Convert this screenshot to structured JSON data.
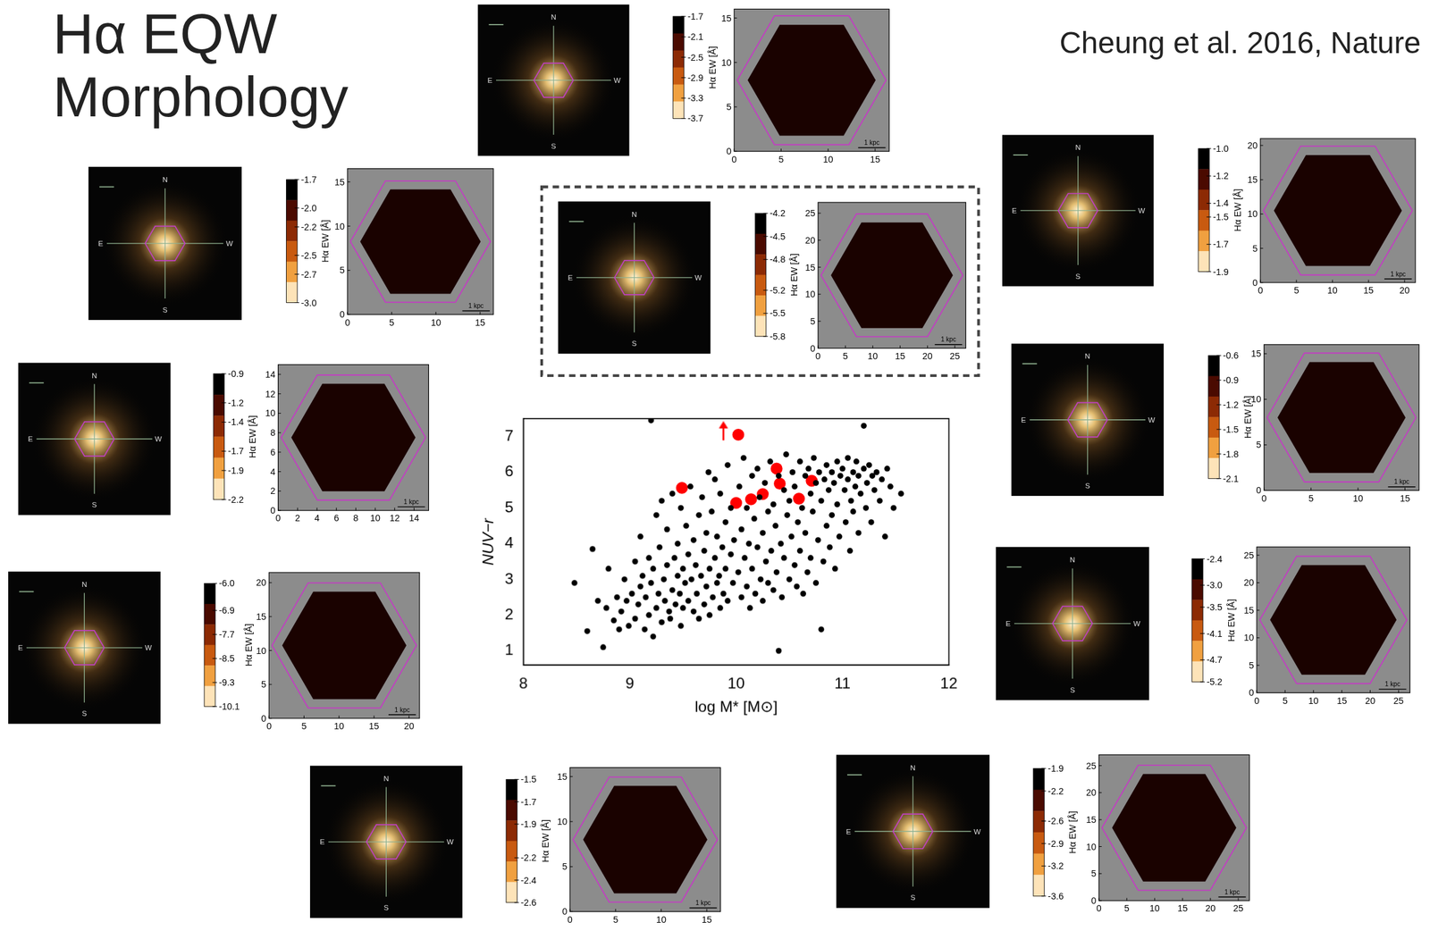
{
  "title": "Hα EQW Morphology",
  "citation": "Cheung et al. 2016, Nature",
  "chart_data": {
    "type": "scatter",
    "x_label": "log M* [M⊙]",
    "y_label": "NUV−r",
    "xlim": [
      8,
      12
    ],
    "xticks": [
      8,
      9,
      10,
      11,
      12
    ],
    "ylim": [
      0.6,
      7.5
    ],
    "yticks": [
      1,
      2,
      3,
      4,
      5,
      6,
      7
    ],
    "grid": false,
    "series": [
      {
        "color": "#000000",
        "marker": "circle",
        "values": [
          [
            8.48,
            2.9
          ],
          [
            8.6,
            1.55
          ],
          [
            8.65,
            3.85
          ],
          [
            8.7,
            2.4
          ],
          [
            8.75,
            1.1
          ],
          [
            8.78,
            2.2
          ],
          [
            8.8,
            3.3
          ],
          [
            8.85,
            1.85
          ],
          [
            8.88,
            2.5
          ],
          [
            8.9,
            1.6
          ],
          [
            8.92,
            2.1
          ],
          [
            8.95,
            3.0
          ],
          [
            8.97,
            2.4
          ],
          [
            8.99,
            1.7
          ],
          [
            9.02,
            2.6
          ],
          [
            9.05,
            3.5
          ],
          [
            9.05,
            1.9
          ],
          [
            9.08,
            2.3
          ],
          [
            9.1,
            4.2
          ],
          [
            9.1,
            2.8
          ],
          [
            9.12,
            3.1
          ],
          [
            9.14,
            1.6
          ],
          [
            9.15,
            2.5
          ],
          [
            9.18,
            3.6
          ],
          [
            9.18,
            2.0
          ],
          [
            9.2,
            7.45
          ],
          [
            9.2,
            2.9
          ],
          [
            9.22,
            1.4
          ],
          [
            9.22,
            3.3
          ],
          [
            9.25,
            2.2
          ],
          [
            9.25,
            4.8
          ],
          [
            9.27,
            2.6
          ],
          [
            9.28,
            3.9
          ],
          [
            9.3,
            1.8
          ],
          [
            9.3,
            5.2
          ],
          [
            9.32,
            3.0
          ],
          [
            9.33,
            2.4
          ],
          [
            9.35,
            4.4
          ],
          [
            9.35,
            3.4
          ],
          [
            9.37,
            2.1
          ],
          [
            9.38,
            1.9
          ],
          [
            9.4,
            2.7
          ],
          [
            9.4,
            5.4
          ],
          [
            9.42,
            3.6
          ],
          [
            9.43,
            2.3
          ],
          [
            9.45,
            4.0
          ],
          [
            9.45,
            3.1
          ],
          [
            9.47,
            2.6
          ],
          [
            9.48,
            5.0
          ],
          [
            9.48,
            1.7
          ],
          [
            9.5,
            3.3
          ],
          [
            9.5,
            2.2
          ],
          [
            9.52,
            2.9
          ],
          [
            9.53,
            4.5
          ],
          [
            9.55,
            3.7
          ],
          [
            9.55,
            2.4
          ],
          [
            9.57,
            5.6
          ],
          [
            9.58,
            3.0
          ],
          [
            9.6,
            2.1
          ],
          [
            9.6,
            4.1
          ],
          [
            9.62,
            3.4
          ],
          [
            9.63,
            2.6
          ],
          [
            9.65,
            4.8
          ],
          [
            9.65,
            1.9
          ],
          [
            9.67,
            3.1
          ],
          [
            9.68,
            5.3
          ],
          [
            9.7,
            2.3
          ],
          [
            9.7,
            3.8
          ],
          [
            9.72,
            4.3
          ],
          [
            9.72,
            2.8
          ],
          [
            9.74,
            6.0
          ],
          [
            9.75,
            3.3
          ],
          [
            9.75,
            2.0
          ],
          [
            9.77,
            4.9
          ],
          [
            9.78,
            2.5
          ],
          [
            9.8,
            3.6
          ],
          [
            9.8,
            5.8
          ],
          [
            9.82,
            2.9
          ],
          [
            9.82,
            4.2
          ],
          [
            9.84,
            3.1
          ],
          [
            9.85,
            2.2
          ],
          [
            9.85,
            5.4
          ],
          [
            9.87,
            3.9
          ],
          [
            9.88,
            2.6
          ],
          [
            9.9,
            4.6
          ],
          [
            9.9,
            3.3
          ],
          [
            9.92,
            6.2
          ],
          [
            9.92,
            2.4
          ],
          [
            9.95,
            3.7
          ],
          [
            9.95,
            5.0
          ],
          [
            9.97,
            2.9
          ],
          [
            9.98,
            4.1
          ],
          [
            10.02,
            3.2
          ],
          [
            10.03,
            5.6
          ],
          [
            10.05,
            2.5
          ],
          [
            10.05,
            4.4
          ],
          [
            10.07,
            6.4
          ],
          [
            10.08,
            3.6
          ],
          [
            10.1,
            2.8
          ],
          [
            10.1,
            5.0
          ],
          [
            10.12,
            4.0
          ],
          [
            10.13,
            2.2
          ],
          [
            10.15,
            5.9
          ],
          [
            10.15,
            3.3
          ],
          [
            10.17,
            4.7
          ],
          [
            10.18,
            2.6
          ],
          [
            10.2,
            3.9
          ],
          [
            10.2,
            6.1
          ],
          [
            10.22,
            5.3
          ],
          [
            10.23,
            3.0
          ],
          [
            10.25,
            4.3
          ],
          [
            10.25,
            2.4
          ],
          [
            10.27,
            5.7
          ],
          [
            10.28,
            3.5
          ],
          [
            10.3,
            4.9
          ],
          [
            10.3,
            2.9
          ],
          [
            10.32,
            6.3
          ],
          [
            10.33,
            3.8
          ],
          [
            10.35,
            5.1
          ],
          [
            10.35,
            2.7
          ],
          [
            10.37,
            4.5
          ],
          [
            10.38,
            3.2
          ],
          [
            10.4,
            5.9
          ],
          [
            10.4,
            1.0
          ],
          [
            10.42,
            4.0
          ],
          [
            10.43,
            2.5
          ],
          [
            10.45,
            5.5
          ],
          [
            10.45,
            3.6
          ],
          [
            10.47,
            6.5
          ],
          [
            10.48,
            4.8
          ],
          [
            10.5,
            3.0
          ],
          [
            10.5,
            5.2
          ],
          [
            10.52,
            4.2
          ],
          [
            10.53,
            6.0
          ],
          [
            10.55,
            3.4
          ],
          [
            10.55,
            5.6
          ],
          [
            10.57,
            2.8
          ],
          [
            10.58,
            4.6
          ],
          [
            10.6,
            6.3
          ],
          [
            10.6,
            3.8
          ],
          [
            10.62,
            5.0
          ],
          [
            10.63,
            2.6
          ],
          [
            10.65,
            5.9
          ],
          [
            10.65,
            4.3
          ],
          [
            10.67,
            3.2
          ],
          [
            10.68,
            6.1
          ],
          [
            10.7,
            5.4
          ],
          [
            10.7,
            3.6
          ],
          [
            10.72,
            4.9
          ],
          [
            10.73,
            6.4
          ],
          [
            10.75,
            5.7
          ],
          [
            10.75,
            2.9
          ],
          [
            10.77,
            4.1
          ],
          [
            10.78,
            6.0
          ],
          [
            10.8,
            1.6
          ],
          [
            10.8,
            5.2
          ],
          [
            10.82,
            3.5
          ],
          [
            10.83,
            5.8
          ],
          [
            10.85,
            4.5
          ],
          [
            10.85,
            6.2
          ],
          [
            10.87,
            5.5
          ],
          [
            10.88,
            3.9
          ],
          [
            10.9,
            6.0
          ],
          [
            10.9,
            4.8
          ],
          [
            10.92,
            5.7
          ],
          [
            10.93,
            3.3
          ],
          [
            10.95,
            6.3
          ],
          [
            10.95,
            5.1
          ],
          [
            10.97,
            4.2
          ],
          [
            10.98,
            5.9
          ],
          [
            11.0,
            6.1
          ],
          [
            11.02,
            5.5
          ],
          [
            11.03,
            4.6
          ],
          [
            11.05,
            6.4
          ],
          [
            11.05,
            5.8
          ],
          [
            11.07,
            3.8
          ],
          [
            11.08,
            5.2
          ],
          [
            11.1,
            6.0
          ],
          [
            11.1,
            4.9
          ],
          [
            11.12,
            5.6
          ],
          [
            11.13,
            6.3
          ],
          [
            11.15,
            5.9
          ],
          [
            11.15,
            4.3
          ],
          [
            11.17,
            5.4
          ],
          [
            11.2,
            7.3
          ],
          [
            11.2,
            6.1
          ],
          [
            11.22,
            5.0
          ],
          [
            11.23,
            5.7
          ],
          [
            11.25,
            6.2
          ],
          [
            11.27,
            4.6
          ],
          [
            11.28,
            5.9
          ],
          [
            11.3,
            5.5
          ],
          [
            11.32,
            6.0
          ],
          [
            11.35,
            5.2
          ],
          [
            11.37,
            5.8
          ],
          [
            11.4,
            4.2
          ],
          [
            11.42,
            6.1
          ],
          [
            11.45,
            5.6
          ],
          [
            11.48,
            5.0
          ],
          [
            11.55,
            5.4
          ]
        ]
      },
      {
        "color": "#ff0000",
        "marker": "circle",
        "values": [
          [
            9.49,
            5.56
          ],
          [
            10.02,
            7.05
          ],
          [
            10.0,
            5.14
          ],
          [
            10.14,
            5.24
          ],
          [
            10.25,
            5.39
          ],
          [
            10.38,
            6.1
          ],
          [
            10.41,
            5.68
          ],
          [
            10.71,
            5.76
          ],
          [
            10.59,
            5.26
          ]
        ]
      },
      {
        "color": "#ff0000",
        "marker": "arrow",
        "values": [
          [
            9.88,
            7.15
          ]
        ]
      }
    ]
  },
  "panels": {
    "colorbar_label": "Hα EW [Å]",
    "scale_bar": "1 kpc",
    "compass": [
      "N",
      "E",
      "S",
      "W"
    ],
    "maps": [
      {
        "xlim": [
          0,
          16.5
        ],
        "ylim": [
          0,
          16
        ],
        "xticks": [
          0,
          5,
          10,
          15
        ],
        "yticks": [
          0,
          5,
          10,
          15
        ],
        "colorbar_ticks": [
          -1.7,
          -2.1,
          -2.5,
          -2.9,
          -3.3,
          -3.7
        ]
      },
      {
        "xlim": [
          0,
          16.5
        ],
        "ylim": [
          0,
          16.5
        ],
        "xticks": [
          0,
          5,
          10,
          15
        ],
        "yticks": [
          0,
          5,
          10,
          15
        ],
        "colorbar_ticks": [
          -1.7,
          {
            "value": -2,
            "label": "-2.0"
          },
          -2.2,
          -2.5,
          -2.7,
          {
            "value": -3,
            "label": "-3.0"
          }
        ]
      },
      {
        "xlim": [
          0,
          27
        ],
        "ylim": [
          0,
          27
        ],
        "xticks": [
          0,
          5,
          10,
          15,
          20,
          25
        ],
        "yticks": [
          0,
          5,
          10,
          15,
          20,
          25
        ],
        "colorbar_ticks": [
          -4.2,
          -4.5,
          -4.8,
          -5.2,
          -5.5,
          -5.8
        ]
      },
      {
        "xlim": [
          0,
          21.5
        ],
        "ylim": [
          0,
          21
        ],
        "xticks": [
          0,
          5,
          10,
          15,
          20
        ],
        "yticks": [
          0,
          5,
          10,
          15,
          20
        ],
        "colorbar_ticks": [
          {
            "value": -1,
            "label": "-1.0"
          },
          -1.2,
          -1.4,
          -1.5,
          -1.7,
          -1.9
        ]
      },
      {
        "xlim": [
          0,
          15.5
        ],
        "ylim": [
          0,
          15
        ],
        "xticks": [
          0,
          2,
          4,
          6,
          8,
          10,
          12,
          14
        ],
        "yticks": [
          0,
          2,
          4,
          6,
          8,
          10,
          12,
          14
        ],
        "colorbar_ticks": [
          -0.9,
          -1.2,
          -1.4,
          -1.7,
          -1.9,
          -2.2
        ]
      },
      {
        "xlim": [
          0,
          16.5
        ],
        "ylim": [
          0,
          16
        ],
        "xticks": [
          0,
          5,
          10,
          15
        ],
        "yticks": [
          0,
          5,
          10,
          15
        ],
        "colorbar_ticks": [
          -0.6,
          -0.9,
          -1.2,
          -1.5,
          -1.8,
          -2.1
        ]
      },
      {
        "xlim": [
          0,
          21.5
        ],
        "ylim": [
          0,
          21.5
        ],
        "xticks": [
          0,
          5,
          10,
          15,
          20
        ],
        "yticks": [
          0,
          5,
          10,
          15,
          20
        ],
        "colorbar_ticks": [
          {
            "value": -6,
            "label": "-6.0"
          },
          -6.9,
          -7.7,
          -8.5,
          -9.3,
          -10.1
        ]
      },
      {
        "xlim": [
          0,
          27
        ],
        "ylim": [
          0,
          26.5
        ],
        "xticks": [
          0,
          5,
          10,
          15,
          20,
          25
        ],
        "yticks": [
          0,
          5,
          10,
          15,
          20,
          25
        ],
        "colorbar_ticks": [
          -2.4,
          {
            "value": -3,
            "label": "-3.0"
          },
          -3.5,
          -4.1,
          -4.7,
          -5.2
        ]
      },
      {
        "xlim": [
          0,
          16.5
        ],
        "ylim": [
          0,
          16
        ],
        "xticks": [
          0,
          5,
          10,
          15
        ],
        "yticks": [
          0,
          5,
          10,
          15
        ],
        "colorbar_ticks": [
          -1.5,
          -1.7,
          -1.9,
          -2.2,
          -2.4,
          -2.6
        ]
      },
      {
        "xlim": [
          0,
          27
        ],
        "ylim": [
          0,
          27
        ],
        "xticks": [
          0,
          5,
          10,
          15,
          20,
          25
        ],
        "yticks": [
          0,
          5,
          10,
          15,
          20,
          25
        ],
        "colorbar_ticks": [
          -1.9,
          -2.2,
          -2.6,
          -2.9,
          -3.2,
          -3.6
        ]
      }
    ]
  }
}
